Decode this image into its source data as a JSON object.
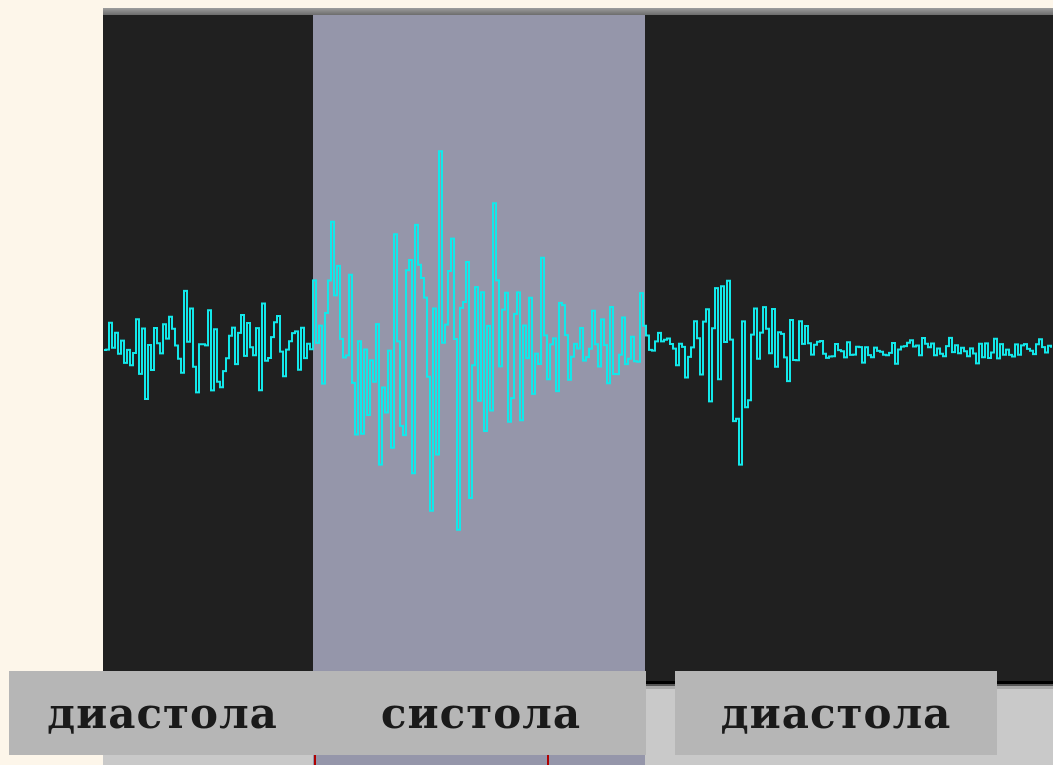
{
  "colors": {
    "waveform": "#12e8ea",
    "panel": "#202020",
    "systole_band": "#9596aa",
    "label_bg": "#b6b6b6"
  },
  "labels": {
    "diastole_left": "диастола",
    "systole": "систола",
    "diastole_right": "диастола"
  }
}
